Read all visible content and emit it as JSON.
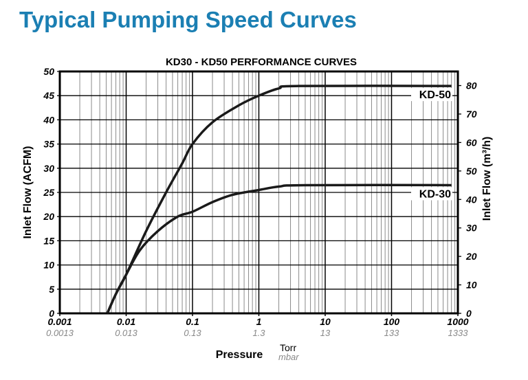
{
  "page": {
    "title": "Typical Pumping Speed Curves"
  },
  "colors": {
    "title": "#1b7fb3",
    "curve": "#1a1a1a",
    "minor_grid": "#8a8a8a"
  },
  "chart_data": {
    "type": "line",
    "title": "KD30 - KD50 PERFORMANCE CURVES",
    "xlabel": "Pressure",
    "x_units": [
      "Torr",
      "mbar"
    ],
    "ylabel": "Inlet Flow (ACFM)",
    "y2label": "Inlet Flow (m³/h)",
    "xscale": "log",
    "xlim": [
      0.001,
      1000
    ],
    "ylim": [
      0,
      50
    ],
    "y2lim": [
      0,
      85
    ],
    "grid": true,
    "x_ticks": [
      "0.001",
      "0.01",
      "0.1",
      "1",
      "10",
      "100",
      "1000"
    ],
    "x_ticks_mbar": [
      "0.0013",
      "0.013",
      "0.13",
      "1.3",
      "13",
      "133",
      "1333"
    ],
    "y_ticks": [
      "0",
      "5",
      "10",
      "15",
      "20",
      "25",
      "30",
      "35",
      "40",
      "45",
      "50"
    ],
    "y2_ticks": [
      "0",
      "10",
      "20",
      "30",
      "40",
      "50",
      "60",
      "70",
      "80"
    ],
    "series": [
      {
        "name": "KD-50",
        "x": [
          0.0052,
          0.007,
          0.01,
          0.02,
          0.04,
          0.07,
          0.1,
          0.2,
          0.5,
          1,
          2,
          4,
          800
        ],
        "y": [
          0,
          4,
          8,
          17,
          25,
          31,
          35,
          39.5,
          43,
          45,
          46.5,
          47,
          47
        ]
      },
      {
        "name": "KD-30",
        "x": [
          0.0052,
          0.007,
          0.01,
          0.016,
          0.03,
          0.06,
          0.1,
          0.2,
          0.4,
          1,
          2,
          5,
          800
        ],
        "y": [
          0,
          4,
          8,
          13,
          17,
          20,
          21,
          23,
          24.5,
          25.5,
          26.2,
          26.5,
          26.5
        ]
      }
    ]
  }
}
